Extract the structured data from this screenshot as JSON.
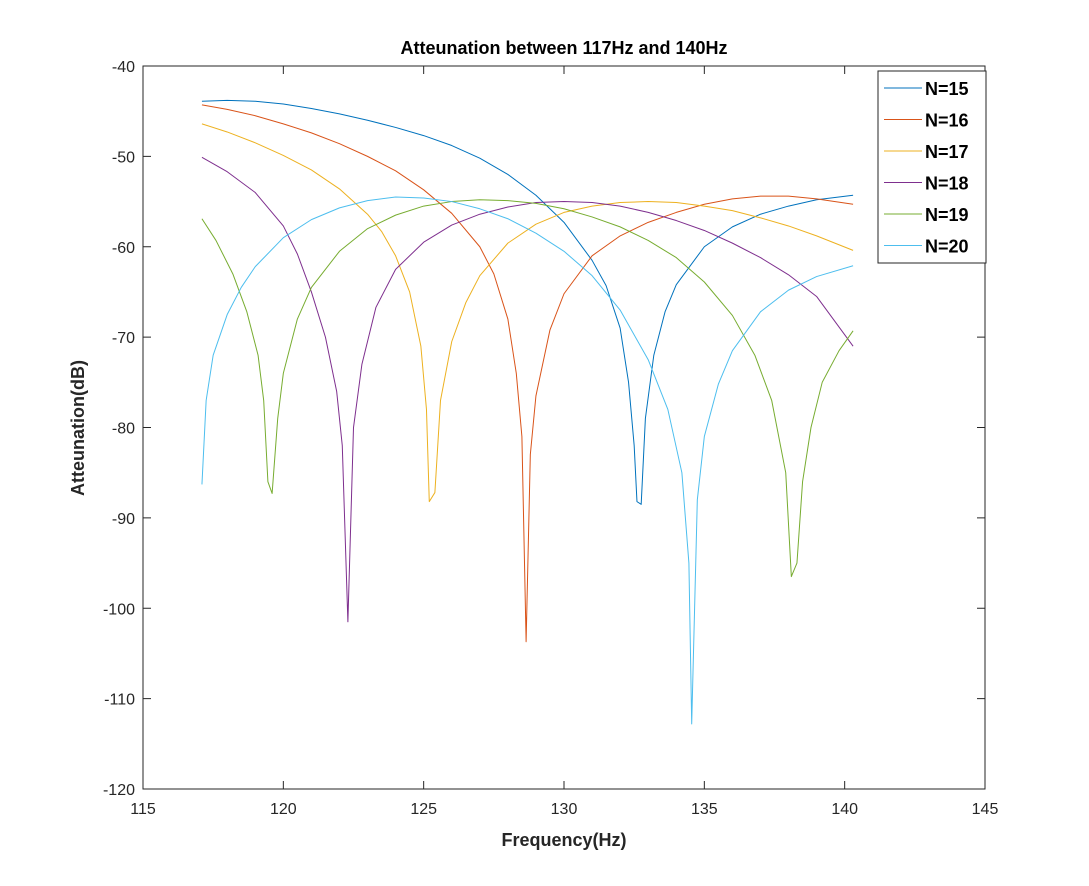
{
  "chart_data": {
    "type": "line",
    "title": "Atteunation between 117Hz and 140Hz",
    "xlabel": "Frequency(Hz)",
    "ylabel": "Atteunation(dB)",
    "xlim": [
      115,
      145
    ],
    "ylim": [
      -120,
      -40
    ],
    "xticks": [
      115,
      120,
      125,
      130,
      135,
      140,
      145
    ],
    "yticks": [
      -120,
      -110,
      -100,
      -90,
      -80,
      -70,
      -60,
      -50,
      -40
    ],
    "grid": false,
    "legend_position": "top-right",
    "series": [
      {
        "name": "N=15",
        "color": "#0072BD",
        "points": [
          [
            117.1,
            -43.9
          ],
          [
            118,
            -43.8
          ],
          [
            119,
            -43.9
          ],
          [
            120,
            -44.2
          ],
          [
            121,
            -44.7
          ],
          [
            122,
            -45.3
          ],
          [
            123,
            -46.0
          ],
          [
            124,
            -46.8
          ],
          [
            125,
            -47.7
          ],
          [
            126,
            -48.8
          ],
          [
            127,
            -50.2
          ],
          [
            128,
            -52.0
          ],
          [
            129,
            -54.3
          ],
          [
            130,
            -57.3
          ],
          [
            131,
            -61.5
          ],
          [
            131.5,
            -64.3
          ],
          [
            132,
            -69.0
          ],
          [
            132.3,
            -75.0
          ],
          [
            132.5,
            -82.0
          ],
          [
            132.6,
            -88.2
          ],
          [
            132.75,
            -88.5
          ],
          [
            132.9,
            -79.0
          ],
          [
            133.2,
            -72.0
          ],
          [
            133.6,
            -67.2
          ],
          [
            134,
            -64.2
          ],
          [
            135,
            -60.0
          ],
          [
            136,
            -57.8
          ],
          [
            137,
            -56.4
          ],
          [
            138,
            -55.5
          ],
          [
            139,
            -54.8
          ],
          [
            140.3,
            -54.3
          ]
        ]
      },
      {
        "name": "N=16",
        "color": "#D95319",
        "points": [
          [
            117.1,
            -44.3
          ],
          [
            118,
            -44.8
          ],
          [
            119,
            -45.5
          ],
          [
            120,
            -46.4
          ],
          [
            121,
            -47.4
          ],
          [
            122,
            -48.6
          ],
          [
            123,
            -50.0
          ],
          [
            124,
            -51.6
          ],
          [
            125,
            -53.7
          ],
          [
            126,
            -56.3
          ],
          [
            127,
            -60.0
          ],
          [
            127.5,
            -63.0
          ],
          [
            128,
            -68.0
          ],
          [
            128.3,
            -74.0
          ],
          [
            128.5,
            -81.0
          ],
          [
            128.65,
            -103.7
          ],
          [
            128.8,
            -83.0
          ],
          [
            129,
            -76.5
          ],
          [
            129.5,
            -69.2
          ],
          [
            130,
            -65.2
          ],
          [
            131,
            -61.0
          ],
          [
            132,
            -58.8
          ],
          [
            133,
            -57.3
          ],
          [
            134,
            -56.2
          ],
          [
            135,
            -55.3
          ],
          [
            136,
            -54.7
          ],
          [
            137,
            -54.4
          ],
          [
            138,
            -54.4
          ],
          [
            139,
            -54.7
          ],
          [
            140.3,
            -55.3
          ]
        ]
      },
      {
        "name": "N=17",
        "color": "#EDB120",
        "points": [
          [
            117.1,
            -46.4
          ],
          [
            118,
            -47.3
          ],
          [
            119,
            -48.5
          ],
          [
            120,
            -49.9
          ],
          [
            121,
            -51.5
          ],
          [
            122,
            -53.6
          ],
          [
            123,
            -56.4
          ],
          [
            123.5,
            -58.3
          ],
          [
            124,
            -61.0
          ],
          [
            124.5,
            -65.0
          ],
          [
            124.9,
            -71.0
          ],
          [
            125.1,
            -78.0
          ],
          [
            125.2,
            -88.2
          ],
          [
            125.4,
            -87.2
          ],
          [
            125.6,
            -77.0
          ],
          [
            126,
            -70.5
          ],
          [
            126.5,
            -66.2
          ],
          [
            127,
            -63.2
          ],
          [
            128,
            -59.6
          ],
          [
            129,
            -57.5
          ],
          [
            130,
            -56.2
          ],
          [
            131,
            -55.5
          ],
          [
            132,
            -55.1
          ],
          [
            133,
            -55.0
          ],
          [
            134,
            -55.1
          ],
          [
            135,
            -55.5
          ],
          [
            136,
            -56.0
          ],
          [
            137,
            -56.8
          ],
          [
            138,
            -57.7
          ],
          [
            139,
            -58.8
          ],
          [
            140.3,
            -60.4
          ]
        ]
      },
      {
        "name": "N=18",
        "color": "#7E2F8E",
        "points": [
          [
            117.1,
            -50.1
          ],
          [
            118,
            -51.7
          ],
          [
            119,
            -54.0
          ],
          [
            120,
            -57.7
          ],
          [
            120.5,
            -60.8
          ],
          [
            121,
            -65.0
          ],
          [
            121.5,
            -70.0
          ],
          [
            121.9,
            -76.0
          ],
          [
            122.1,
            -82.0
          ],
          [
            122.3,
            -101.5
          ],
          [
            122.5,
            -80.0
          ],
          [
            122.8,
            -73.0
          ],
          [
            123.3,
            -66.7
          ],
          [
            124,
            -62.5
          ],
          [
            125,
            -59.5
          ],
          [
            126,
            -57.6
          ],
          [
            127,
            -56.4
          ],
          [
            128,
            -55.6
          ],
          [
            129,
            -55.1
          ],
          [
            130,
            -55.0
          ],
          [
            131,
            -55.1
          ],
          [
            132,
            -55.5
          ],
          [
            133,
            -56.2
          ],
          [
            134,
            -57.1
          ],
          [
            135,
            -58.2
          ],
          [
            136,
            -59.6
          ],
          [
            137,
            -61.2
          ],
          [
            138,
            -63.1
          ],
          [
            139,
            -65.5
          ],
          [
            140.3,
            -71.0
          ]
        ]
      },
      {
        "name": "N=19",
        "color": "#77AC30",
        "points": [
          [
            117.1,
            -56.9
          ],
          [
            117.6,
            -59.3
          ],
          [
            118.2,
            -63.0
          ],
          [
            118.7,
            -67.2
          ],
          [
            119.1,
            -72.0
          ],
          [
            119.3,
            -77.0
          ],
          [
            119.45,
            -86.0
          ],
          [
            119.6,
            -87.3
          ],
          [
            119.8,
            -79.0
          ],
          [
            120,
            -74.0
          ],
          [
            120.5,
            -68.0
          ],
          [
            121,
            -64.5
          ],
          [
            122,
            -60.5
          ],
          [
            123,
            -58.0
          ],
          [
            124,
            -56.5
          ],
          [
            125,
            -55.5
          ],
          [
            126,
            -55.0
          ],
          [
            127,
            -54.8
          ],
          [
            128,
            -54.9
          ],
          [
            129,
            -55.2
          ],
          [
            130,
            -55.8
          ],
          [
            131,
            -56.7
          ],
          [
            132,
            -57.8
          ],
          [
            133,
            -59.3
          ],
          [
            134,
            -61.2
          ],
          [
            135,
            -63.9
          ],
          [
            136,
            -67.6
          ],
          [
            136.8,
            -72.0
          ],
          [
            137.4,
            -77.0
          ],
          [
            137.9,
            -85.0
          ],
          [
            138.1,
            -96.5
          ],
          [
            138.3,
            -95.0
          ],
          [
            138.5,
            -86.0
          ],
          [
            138.8,
            -80.0
          ],
          [
            139.2,
            -75.0
          ],
          [
            139.8,
            -71.5
          ],
          [
            140.3,
            -69.3
          ]
        ]
      },
      {
        "name": "N=20",
        "color": "#4DBEEE",
        "points": [
          [
            117.1,
            -86.3
          ],
          [
            117.25,
            -77.0
          ],
          [
            117.5,
            -72.0
          ],
          [
            118,
            -67.5
          ],
          [
            118.5,
            -64.5
          ],
          [
            119,
            -62.2
          ],
          [
            120,
            -59.0
          ],
          [
            121,
            -57.0
          ],
          [
            122,
            -55.7
          ],
          [
            123,
            -54.9
          ],
          [
            124,
            -54.5
          ],
          [
            125,
            -54.6
          ],
          [
            126,
            -55.0
          ],
          [
            127,
            -55.8
          ],
          [
            128,
            -56.9
          ],
          [
            129,
            -58.5
          ],
          [
            130,
            -60.5
          ],
          [
            131,
            -63.2
          ],
          [
            132,
            -67.0
          ],
          [
            133,
            -72.5
          ],
          [
            133.7,
            -78.0
          ],
          [
            134.2,
            -85.0
          ],
          [
            134.45,
            -95.0
          ],
          [
            134.55,
            -112.8
          ],
          [
            134.75,
            -88.0
          ],
          [
            135,
            -81.0
          ],
          [
            135.5,
            -75.2
          ],
          [
            136,
            -71.5
          ],
          [
            137,
            -67.2
          ],
          [
            138,
            -64.8
          ],
          [
            139,
            -63.3
          ],
          [
            140.3,
            -62.1
          ]
        ]
      }
    ]
  }
}
